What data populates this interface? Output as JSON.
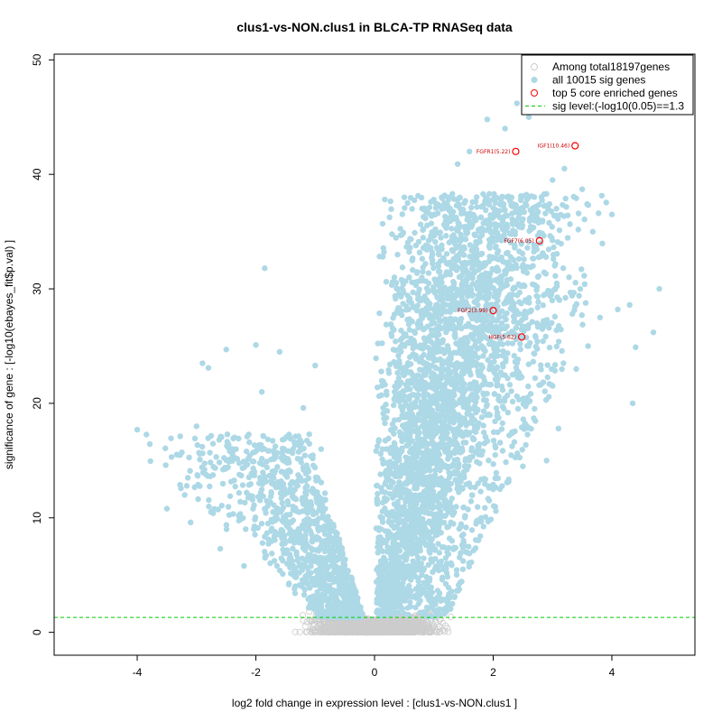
{
  "chart_data": {
    "type": "scatter",
    "title": "clus1-vs-NON.clus1 in BLCA-TP RNASeq data",
    "xlabel": "log2 fold change in expression level : [clus1-vs-NON.clus1 ]",
    "ylabel": "significance of gene : [-log10(ebayes_fit$p.val) ]",
    "xlim": [
      -5.4,
      5.4
    ],
    "ylim": [
      -2,
      50.5
    ],
    "xticks": [
      -4,
      -2,
      0,
      2,
      4
    ],
    "yticks": [
      0,
      10,
      20,
      30,
      40,
      50
    ],
    "grid": false,
    "legend_position": "top-right",
    "legend": [
      {
        "label": "Among total18197genes",
        "symbol": "open-circle",
        "color": "#cccccc"
      },
      {
        "label": "all 10015 sig genes",
        "symbol": "filled-circle",
        "color": "#add8e6"
      },
      {
        "label": "top 5 core enriched genes",
        "symbol": "open-circle",
        "color": "#ff0000"
      },
      {
        "label": "sig level:(-log10(0.05)==1.3",
        "symbol": "dashed-line",
        "color": "#00cc00"
      }
    ],
    "sig_threshold": 1.3,
    "series": [
      {
        "name": "Among total18197genes",
        "color": "#cccccc",
        "description": "non-significant genes clustered near zero",
        "points": [
          [
            -0.6,
            0.9
          ],
          [
            -0.4,
            0.7
          ],
          [
            -0.2,
            0.5
          ],
          [
            0.0,
            0.2
          ],
          [
            0.2,
            0.5
          ],
          [
            0.4,
            0.8
          ],
          [
            0.6,
            1.0
          ],
          [
            -0.8,
            1.1
          ],
          [
            0.8,
            1.1
          ],
          [
            -0.3,
            0.3
          ],
          [
            0.3,
            0.3
          ],
          [
            -0.5,
            0.1
          ],
          [
            0.5,
            0.2
          ],
          [
            -0.1,
            0.0
          ],
          [
            0.1,
            0.1
          ]
        ]
      },
      {
        "name": "all 10015 sig genes",
        "color": "#add8e6",
        "description": "significant genes forming a volcano shape",
        "points": [
          [
            -4.0,
            17.7
          ],
          [
            -3.5,
            10.8
          ],
          [
            -3.2,
            12.0
          ],
          [
            -3.0,
            18.0
          ],
          [
            -2.9,
            23.5
          ],
          [
            -2.8,
            23.1
          ],
          [
            -2.5,
            24.7
          ],
          [
            -2.0,
            25.1
          ],
          [
            -1.9,
            21.0
          ],
          [
            -1.6,
            24.5
          ],
          [
            -1.85,
            31.8
          ],
          [
            -1.0,
            23.3
          ],
          [
            -1.2,
            19.6
          ],
          [
            -1.1,
            17.3
          ],
          [
            -0.9,
            16.0
          ],
          [
            -3.1,
            9.6
          ],
          [
            -2.6,
            7.3
          ],
          [
            -2.2,
            5.8
          ],
          [
            1.4,
            40.9
          ],
          [
            1.6,
            42.0
          ],
          [
            1.9,
            44.8
          ],
          [
            2.2,
            44.0
          ],
          [
            2.4,
            46.2
          ],
          [
            2.6,
            45.0
          ],
          [
            3.0,
            39.5
          ],
          [
            3.2,
            40.5
          ],
          [
            3.5,
            38.7
          ],
          [
            4.0,
            36.5
          ],
          [
            4.1,
            28.2
          ],
          [
            4.3,
            28.6
          ],
          [
            4.7,
            26.2
          ],
          [
            4.8,
            30.0
          ],
          [
            4.4,
            24.9
          ],
          [
            4.35,
            20.0
          ],
          [
            3.8,
            27.5
          ],
          [
            3.4,
            23.0
          ],
          [
            3.6,
            25.0
          ],
          [
            3.1,
            17.8
          ],
          [
            2.9,
            15.0
          ],
          [
            2.5,
            14.5
          ],
          [
            2.0,
            12.5
          ],
          [
            1.8,
            10.0
          ],
          [
            1.5,
            8.0
          ],
          [
            1.2,
            6.5
          ],
          [
            0.9,
            4.5
          ],
          [
            0.7,
            3.0
          ]
        ]
      },
      {
        "name": "top 5 core enriched genes",
        "color": "#ff0000",
        "points": [
          {
            "x": 2.38,
            "y": 42.0,
            "label": "FGFR1(5.22)"
          },
          {
            "x": 3.38,
            "y": 42.5,
            "label": "IGF1(10.46)"
          },
          {
            "x": 2.78,
            "y": 34.2,
            "label": "FGF7(6.05)"
          },
          {
            "x": 2.0,
            "y": 28.1,
            "label": "FGF2(3.99)"
          },
          {
            "x": 2.48,
            "y": 25.8,
            "label": "HGF(5.62)"
          }
        ]
      }
    ]
  }
}
